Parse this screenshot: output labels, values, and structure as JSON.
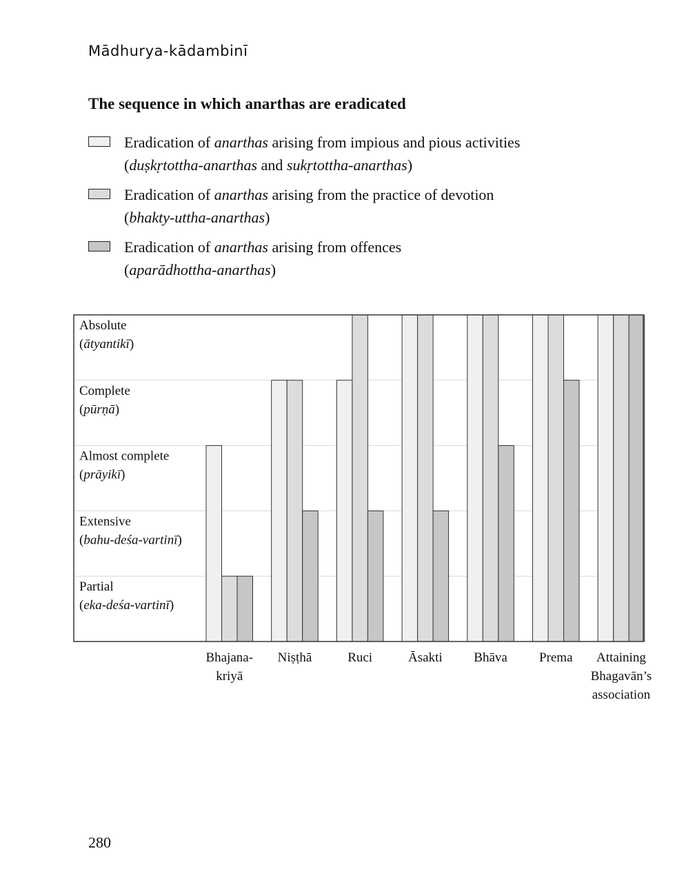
{
  "running_head": "Mādhurya-kādambinī",
  "page_number": "280",
  "chart_data": {
    "type": "bar",
    "title": "The sequence in which anarthas are eradicated",
    "y_levels": [
      {
        "value": 1,
        "label": "Partial",
        "sanskrit": "eka-deśa-vartinī"
      },
      {
        "value": 2,
        "label": "Extensive",
        "sanskrit": "bahu-deśa-vartinī"
      },
      {
        "value": 3,
        "label": "Almost complete",
        "sanskrit": "prāyikī"
      },
      {
        "value": 4,
        "label": "Complete",
        "sanskrit": "pūrṇā"
      },
      {
        "value": 5,
        "label": "Absolute",
        "sanskrit": "ātyantikī"
      }
    ],
    "ylim": [
      0,
      5
    ],
    "grid": true,
    "categories": [
      "Bhajana-kriyā",
      "Niṣṭhā",
      "Ruci",
      "Āsakti",
      "Bhāva",
      "Prema",
      "Attaining Bhagavān’s association"
    ],
    "category_lines": [
      [
        "Bhajana-",
        "kriyā"
      ],
      [
        "Niṣṭhā"
      ],
      [
        "Ruci"
      ],
      [
        "Āsakti"
      ],
      [
        "Bhāva"
      ],
      [
        "Prema"
      ],
      [
        "Attaining",
        "Bhagavān’s",
        "association"
      ]
    ],
    "series": [
      {
        "values": [
          3,
          4,
          4,
          5,
          5,
          5,
          5
        ],
        "color": "#f0f0f0"
      },
      {
        "values": [
          1,
          4,
          5,
          5,
          5,
          5,
          5
        ],
        "color": "#dcdcdc"
      },
      {
        "values": [
          1,
          2,
          2,
          2,
          3,
          4,
          5
        ],
        "color": "#c6c6c6"
      }
    ],
    "legend": [
      {
        "text_prefix": "Eradication of ",
        "text_em": "anarthas",
        "text_suffix": " arising from impious and pious activities",
        "line2_open": "(",
        "line2_em1": "duṣkṛtottha-anarthas",
        "line2_mid": " and ",
        "line2_em2": "sukṛtottha-anarthas",
        "line2_close": ")"
      },
      {
        "text_prefix": "Eradication of ",
        "text_em": "anarthas",
        "text_suffix": " arising from the practice of devotion",
        "line2_open": "(",
        "line2_em1": "bhakty-uttha-anarthas",
        "line2_close": ")"
      },
      {
        "text_prefix": "Eradication of ",
        "text_em": "anarthas",
        "text_suffix": " arising from offences",
        "line2_open": "(",
        "line2_em1": "aparādhottha-anarthas",
        "line2_close": ")"
      }
    ]
  }
}
